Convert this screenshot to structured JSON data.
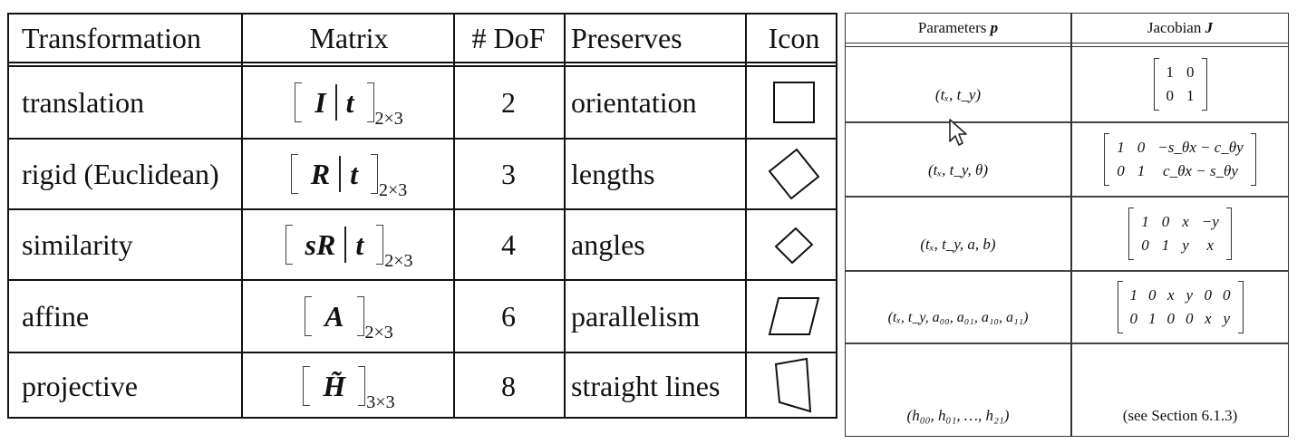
{
  "left_table": {
    "headers": [
      "Transformation",
      "Matrix",
      "# DoF",
      "Preserves",
      "Icon"
    ],
    "rows": [
      {
        "name": "translation",
        "matrix": {
          "left": "I",
          "right": "t",
          "sub": "2×3"
        },
        "dof": "2",
        "preserves": "orientation",
        "icon": "square-icon"
      },
      {
        "name": "rigid (Euclidean)",
        "matrix": {
          "left": "R",
          "right": "t",
          "sub": "2×3"
        },
        "dof": "3",
        "preserves": "lengths",
        "icon": "rotated-square-icon"
      },
      {
        "name": "similarity",
        "matrix": {
          "left": "sR",
          "right": "t",
          "sub": "2×3"
        },
        "dof": "4",
        "preserves": "angles",
        "icon": "small-rotated-square-icon"
      },
      {
        "name": "affine",
        "matrix": {
          "left": "A",
          "right": "",
          "sub": "2×3"
        },
        "dof": "6",
        "preserves": "parallelism",
        "icon": "parallelogram-icon"
      },
      {
        "name": "projective",
        "matrix": {
          "left": "H̃",
          "right": "",
          "sub": "3×3"
        },
        "dof": "8",
        "preserves": "straight lines",
        "icon": "trapezoid-icon"
      }
    ]
  },
  "right_table": {
    "headers": {
      "params": "Parameters",
      "params_sym": "p",
      "jacobian": "Jacobian",
      "jacobian_sym": "J"
    },
    "rows": [
      {
        "params": "(tₓ, t_y)",
        "jacobian": [
          [
            "1",
            "0"
          ],
          [
            "0",
            "1"
          ]
        ]
      },
      {
        "params": "(tₓ, t_y, θ)",
        "jacobian": [
          [
            "1",
            "0",
            "−s_θx − c_θy"
          ],
          [
            "0",
            "1",
            "c_θx − s_θy"
          ]
        ]
      },
      {
        "params": "(tₓ, t_y, a, b)",
        "jacobian": [
          [
            "1",
            "0",
            "x",
            "−y"
          ],
          [
            "0",
            "1",
            "y",
            "x"
          ]
        ]
      },
      {
        "params": "(tₓ, t_y, a₀₀, a₀₁, a₁₀, a₁₁)",
        "jacobian": [
          [
            "1",
            "0",
            "x",
            "y",
            "0",
            "0"
          ],
          [
            "0",
            "1",
            "0",
            "0",
            "x",
            "y"
          ]
        ]
      },
      {
        "params": "(h₀₀, h₀₁, …, h₂₁)",
        "jacobian_text": "(see Section 6.1.3)"
      }
    ]
  }
}
